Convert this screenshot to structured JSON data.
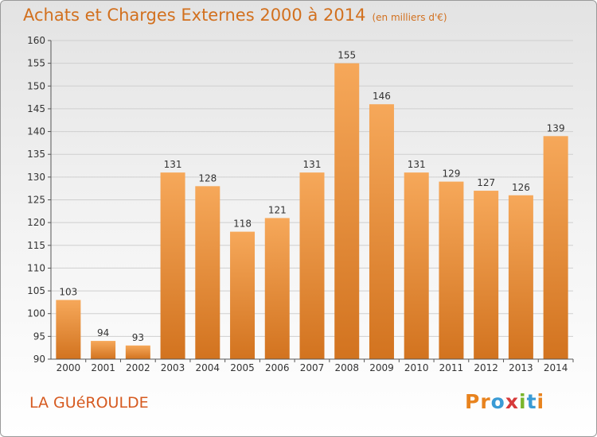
{
  "header": {
    "title": "Achats et Charges Externes 2000 à 2014",
    "unit": "(en milliers d'€)"
  },
  "footer": {
    "commune": "LA GUéROULDE",
    "brand": "Proxiti"
  },
  "colors": {
    "title": "#d2701e",
    "bar_light": "#f6a85a",
    "bar_dark": "#d2731f",
    "brand_letters": [
      "#e8831e",
      "#e8831e",
      "#3a9bd5",
      "#d63a3a",
      "#7ab52c",
      "#3a9bd5",
      "#e8831e"
    ]
  },
  "chart_data": {
    "type": "bar",
    "categories": [
      "2000",
      "2001",
      "2002",
      "2003",
      "2004",
      "2005",
      "2006",
      "2007",
      "2008",
      "2009",
      "2010",
      "2011",
      "2012",
      "2013",
      "2014"
    ],
    "values": [
      103,
      94,
      93,
      131,
      128,
      118,
      121,
      131,
      155,
      146,
      131,
      129,
      127,
      126,
      139
    ],
    "title": "Achats et Charges Externes 2000 à 2014",
    "ylim": [
      90,
      160
    ],
    "yticks": [
      90,
      95,
      100,
      105,
      110,
      115,
      120,
      125,
      130,
      135,
      140,
      145,
      150,
      155,
      160
    ],
    "grid": true,
    "legend": "none"
  }
}
